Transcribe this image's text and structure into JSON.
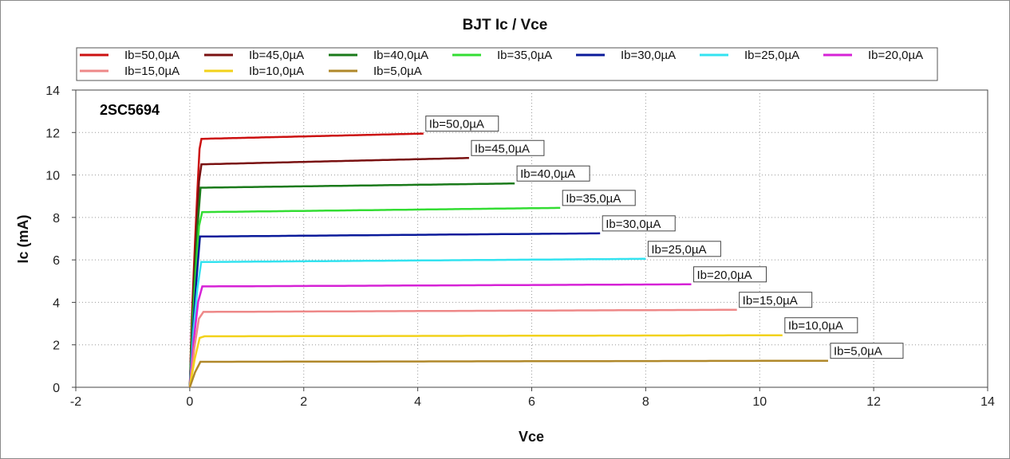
{
  "chart_data": {
    "type": "line",
    "title": "BJT Ic / Vce",
    "xlabel": "Vce",
    "ylabel": "Ic (mA)",
    "xlim": [
      -2,
      14
    ],
    "ylim": [
      0,
      14
    ],
    "xticks": [
      -2,
      0,
      2,
      4,
      6,
      8,
      10,
      12,
      14
    ],
    "yticks": [
      0,
      2,
      4,
      6,
      8,
      10,
      12,
      14
    ],
    "grid": true,
    "legend_position": "top",
    "annotation": "2SC5694",
    "series": [
      {
        "name": "Ib=50,0µA",
        "color": "#cc1111",
        "x_end": 4.1,
        "ic_sat": 11.7,
        "ic_end": 11.95
      },
      {
        "name": "Ib=45,0µA",
        "color": "#7a1111",
        "x_end": 4.9,
        "ic_sat": 10.5,
        "ic_end": 10.8
      },
      {
        "name": "Ib=40,0µA",
        "color": "#1a7a1a",
        "x_end": 5.7,
        "ic_sat": 9.4,
        "ic_end": 9.6
      },
      {
        "name": "Ib=35,0µA",
        "color": "#33dd33",
        "x_end": 6.5,
        "ic_sat": 8.25,
        "ic_end": 8.45
      },
      {
        "name": "Ib=30,0µA",
        "color": "#0a1a9a",
        "x_end": 7.2,
        "ic_sat": 7.1,
        "ic_end": 7.25
      },
      {
        "name": "Ib=25,0µA",
        "color": "#33e3f0",
        "x_end": 8.0,
        "ic_sat": 5.9,
        "ic_end": 6.05
      },
      {
        "name": "Ib=20,0µA",
        "color": "#d622d6",
        "x_end": 8.8,
        "ic_sat": 4.75,
        "ic_end": 4.85
      },
      {
        "name": "Ib=15,0µA",
        "color": "#ee8888",
        "x_end": 9.6,
        "ic_sat": 3.55,
        "ic_end": 3.65
      },
      {
        "name": "Ib=10,0µA",
        "color": "#f2d21a",
        "x_end": 10.4,
        "ic_sat": 2.4,
        "ic_end": 2.45
      },
      {
        "name": "Ib=5,0µA",
        "color": "#b0882a",
        "x_end": 11.2,
        "ic_sat": 1.2,
        "ic_end": 1.25
      }
    ]
  }
}
